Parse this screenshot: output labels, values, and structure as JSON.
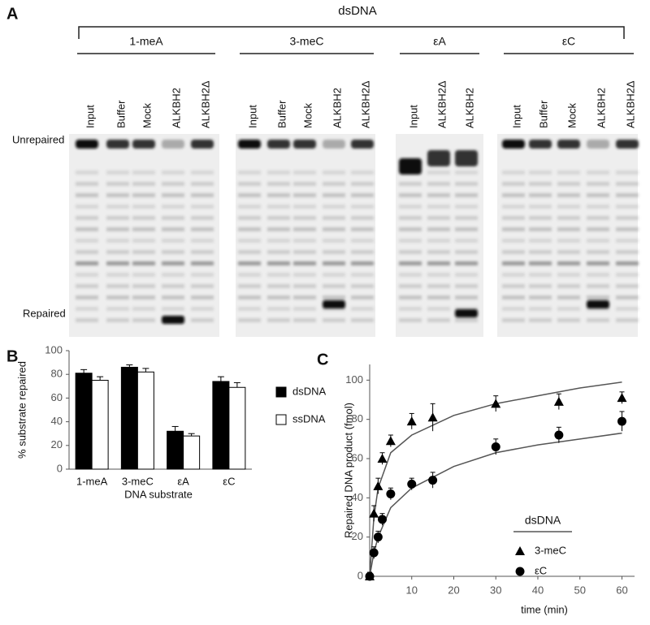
{
  "panel_a": {
    "label": "A",
    "title": "dsDNA",
    "unrepaired": "Unrepaired",
    "repaired": "Repaired",
    "groups": [
      {
        "name": "1-meA",
        "lanes": [
          "Input",
          "Buffer",
          "Mock",
          "ALKBH2",
          "ALKBH2Δ"
        ]
      },
      {
        "name": "3-meC",
        "lanes": [
          "Input",
          "Buffer",
          "Mock",
          "ALKBH2",
          "ALKBH2Δ"
        ]
      },
      {
        "name": "εA",
        "lanes": [
          "Input",
          "ALKBH2Δ",
          "ALKBH2"
        ]
      },
      {
        "name": "εC",
        "lanes": [
          "Input",
          "Buffer",
          "Mock",
          "ALKBH2",
          "ALKBH2Δ"
        ]
      }
    ]
  },
  "chart_data": [
    {
      "type": "bar",
      "label": "B",
      "ylabel": "% substrate repaired",
      "xlabel": "DNA substrate",
      "categories": [
        "1-meA",
        "3-meC",
        "εA",
        "εC"
      ],
      "series": [
        {
          "name": "dsDNA",
          "color": "#000000",
          "values": [
            81,
            86,
            32,
            74
          ],
          "errors": [
            3,
            2,
            4,
            4
          ]
        },
        {
          "name": "ssDNA",
          "color": "#ffffff",
          "values": [
            75,
            82,
            28,
            69
          ],
          "errors": [
            3,
            3,
            2,
            4
          ]
        }
      ],
      "ylim": [
        0,
        100
      ],
      "yticks": [
        0,
        20,
        40,
        60,
        80,
        100
      ]
    },
    {
      "type": "scatter",
      "label": "C",
      "ylabel": "Repaired DNA product (fmol)",
      "xlabel": "time (min)",
      "legend_title": "dsDNA",
      "x": [
        0,
        1,
        2,
        3,
        5,
        10,
        15,
        30,
        45,
        60
      ],
      "series": [
        {
          "name": "3-meC",
          "marker": "triangle",
          "color": "#000000",
          "values": [
            0,
            32,
            46,
            60,
            69,
            79,
            81,
            88,
            89,
            91
          ],
          "errors": [
            2,
            4,
            4,
            3,
            3,
            4,
            7,
            4,
            4,
            3
          ],
          "fit": {
            "x": [
              0,
              1,
              2,
              5,
              10,
              20,
              30,
              40,
              50,
              60
            ],
            "values": [
              0,
              30,
              45,
              63,
              72,
              82,
              88,
              92,
              96,
              99
            ]
          }
        },
        {
          "name": "εC",
          "marker": "circle",
          "color": "#000000",
          "values": [
            0,
            12,
            20,
            29,
            42,
            47,
            49,
            66,
            72,
            79
          ],
          "errors": [
            2,
            3,
            3,
            3,
            3,
            3,
            4,
            4,
            4,
            5
          ],
          "fit": {
            "x": [
              0,
              1,
              2,
              5,
              10,
              20,
              30,
              40,
              50,
              60
            ],
            "values": [
              0,
              12,
              20,
              35,
              45,
              56,
              63,
              67,
              70,
              73
            ]
          }
        }
      ],
      "xlim": [
        0,
        63
      ],
      "xticks": [
        10,
        20,
        30,
        40,
        50,
        60
      ],
      "ylim": [
        0,
        108
      ],
      "yticks": [
        0,
        20,
        40,
        60,
        80,
        100
      ]
    }
  ]
}
